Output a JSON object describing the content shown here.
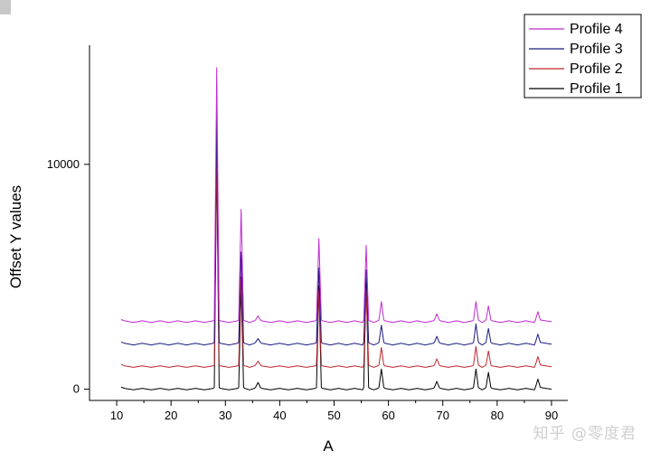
{
  "watermark": "知乎 @零度君",
  "chart_data": {
    "type": "line",
    "xlabel": "A",
    "ylabel": "Offset Y values",
    "xlim": [
      5,
      93
    ],
    "ylim": [
      -500,
      15300
    ],
    "x_ticks": [
      10,
      20,
      30,
      40,
      50,
      60,
      70,
      80,
      90
    ],
    "y_ticks": [
      0,
      10000
    ],
    "legend_position": "top-right",
    "offset": 1000,
    "peaks_x": [
      10.8,
      28.4,
      32.9,
      36.0,
      47.2,
      55.9,
      58.7,
      68.9,
      76.1,
      78.4,
      87.5,
      90
    ],
    "series": [
      {
        "name": "Profile 1",
        "color": "#000000",
        "values": [
          100,
          10300,
          4700,
          300,
          4600,
          5000,
          900,
          350,
          900,
          750,
          450,
          0
        ]
      },
      {
        "name": "Profile 2",
        "color": "#c0262c",
        "values": [
          1100,
          10600,
          5000,
          1250,
          4400,
          4500,
          1850,
          1350,
          1900,
          1700,
          1450,
          1000
        ]
      },
      {
        "name": "Profile 3",
        "color": "#1a1a80",
        "values": [
          2100,
          12200,
          6100,
          2250,
          5400,
          5300,
          2850,
          2350,
          2900,
          2700,
          2450,
          2000
        ]
      },
      {
        "name": "Profile 4",
        "color": "#c12ad1",
        "values": [
          3100,
          14300,
          8000,
          3250,
          6700,
          6400,
          3900,
          3350,
          3900,
          3700,
          3450,
          3000
        ]
      }
    ]
  }
}
